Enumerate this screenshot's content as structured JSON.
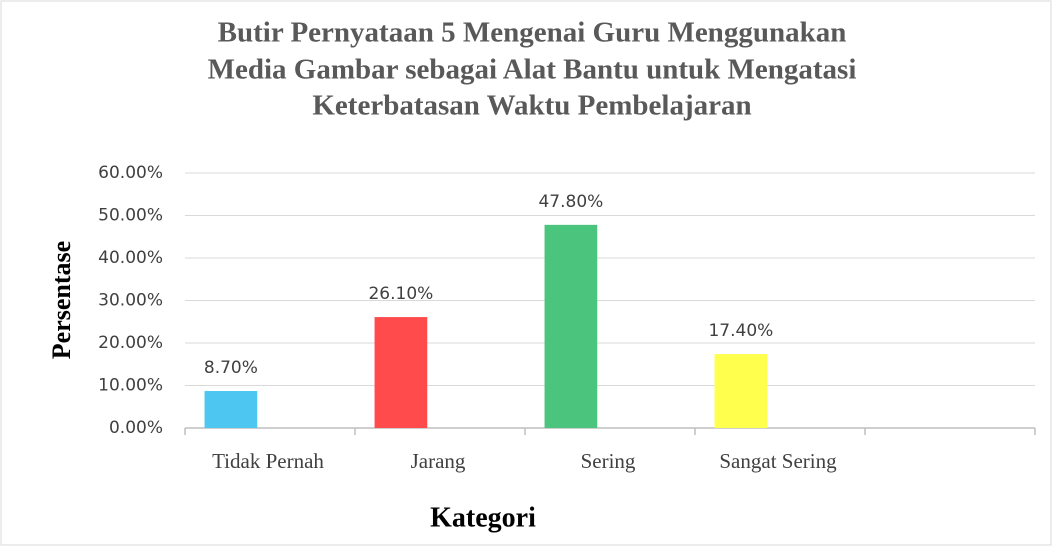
{
  "chart_data": {
    "type": "bar",
    "title": [
      "Butir Pernyataan 5 Mengenai Guru Menggunakan",
      "Media Gambar sebagai Alat Bantu untuk Mengatasi",
      "Keterbatasan Waktu Pembelajaran"
    ],
    "xlabel": "Kategori",
    "ylabel": "Persentase",
    "categories": [
      "Tidak Pernah",
      "Jarang",
      "Sering",
      "Sangat Sering",
      null
    ],
    "values": [
      8.7,
      26.1,
      47.8,
      17.4,
      null
    ],
    "value_labels": [
      "8.70%",
      "26.10%",
      "47.80%",
      "17.40%",
      null
    ],
    "colors": [
      "#4dc7f2",
      "#ff4b4b",
      "#4bc47d",
      "#ffff4d",
      null
    ],
    "ylim": [
      0,
      60
    ],
    "yticks": [
      {
        "value": 0,
        "label": "0.00%"
      },
      {
        "value": 10,
        "label": "10.00%"
      },
      {
        "value": 20,
        "label": "20.00%"
      },
      {
        "value": 30,
        "label": "30.00%"
      },
      {
        "value": 40,
        "label": "40.00%"
      },
      {
        "value": 50,
        "label": "50.00%"
      },
      {
        "value": 60,
        "label": "60.00%"
      }
    ],
    "grid": true
  }
}
